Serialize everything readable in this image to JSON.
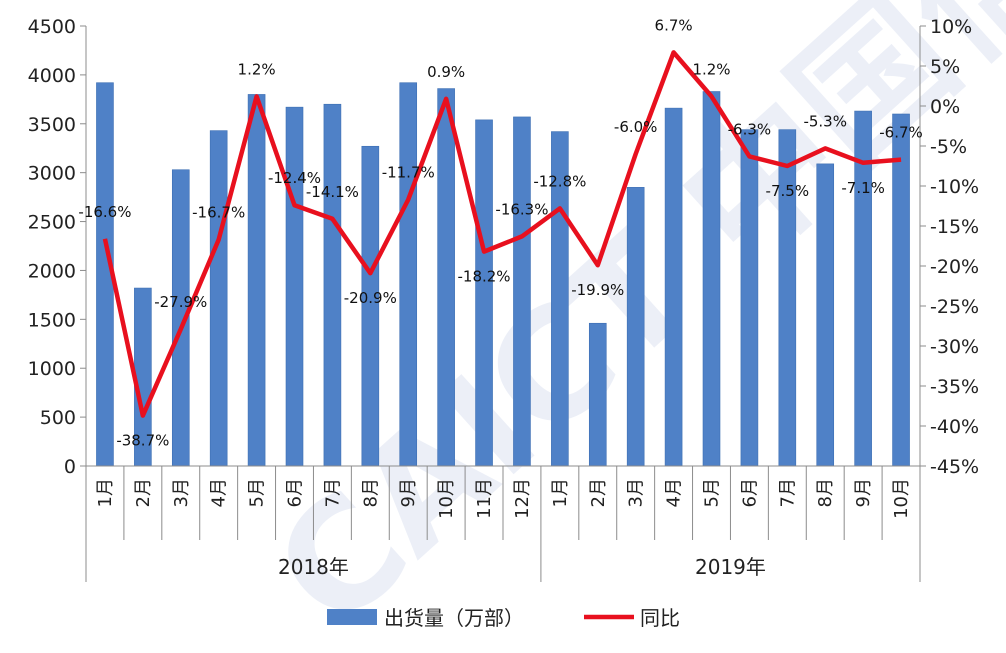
{
  "chart_data": {
    "type": "bar+line",
    "title": "",
    "categories": [
      "1月",
      "2月",
      "3月",
      "4月",
      "5月",
      "6月",
      "7月",
      "8月",
      "9月",
      "10月",
      "11月",
      "12月",
      "1月",
      "2月",
      "3月",
      "4月",
      "5月",
      "6月",
      "7月",
      "8月",
      "9月",
      "10月"
    ],
    "groups": [
      {
        "label": "2018年",
        "count": 12
      },
      {
        "label": "2019年",
        "count": 10
      }
    ],
    "series": [
      {
        "name": "出货量（万部）",
        "type": "bar",
        "axis": "left",
        "values": [
          3920,
          1820,
          3030,
          3430,
          3800,
          3670,
          3700,
          3270,
          3920,
          3860,
          3540,
          3570,
          3420,
          1460,
          2850,
          3660,
          3830,
          3440,
          3440,
          3090,
          3630,
          3600
        ]
      },
      {
        "name": "同比",
        "type": "line",
        "axis": "right",
        "values": [
          -16.6,
          -38.7,
          -27.9,
          -16.7,
          1.2,
          -12.4,
          -14.1,
          -20.9,
          -11.7,
          0.9,
          -18.2,
          -16.3,
          -12.8,
          -19.9,
          -6.0,
          6.7,
          1.2,
          -6.3,
          -7.5,
          -5.3,
          -7.1,
          -6.7
        ],
        "labels": [
          "-16.6%",
          "-38.7%",
          "-27.9%",
          "-16.7%",
          "1.2%",
          "-12.4%",
          "-14.1%",
          "-20.9%",
          "-11.7%",
          "0.9%",
          "-18.2%",
          "-16.3%",
          "-12.8%",
          "-19.9%",
          "-6.0%",
          "6.7%",
          "1.2%",
          "-6.3%",
          "-7.5%",
          "-5.3%",
          "-7.1%",
          "-6.7%"
        ]
      }
    ],
    "y_left": {
      "min": 0,
      "max": 4500,
      "step": 500,
      "ticks": [
        "0",
        "500",
        "1000",
        "1500",
        "2000",
        "2500",
        "3000",
        "3500",
        "4000",
        "4500"
      ]
    },
    "y_right": {
      "min": -45,
      "max": 10,
      "step": 5,
      "ticks": [
        "-45%",
        "-40%",
        "-35%",
        "-30%",
        "-25%",
        "-20%",
        "-15%",
        "-10%",
        "-5%",
        "0%",
        "5%",
        "10%"
      ]
    },
    "grid": false,
    "legend_position": "bottom",
    "colors": {
      "bar": "#4f81c7",
      "bar_edge": "#3d6fb3",
      "line": "#e8101e",
      "axis": "#8c8c8c"
    },
    "watermark": "CAICT 中国信通院"
  }
}
